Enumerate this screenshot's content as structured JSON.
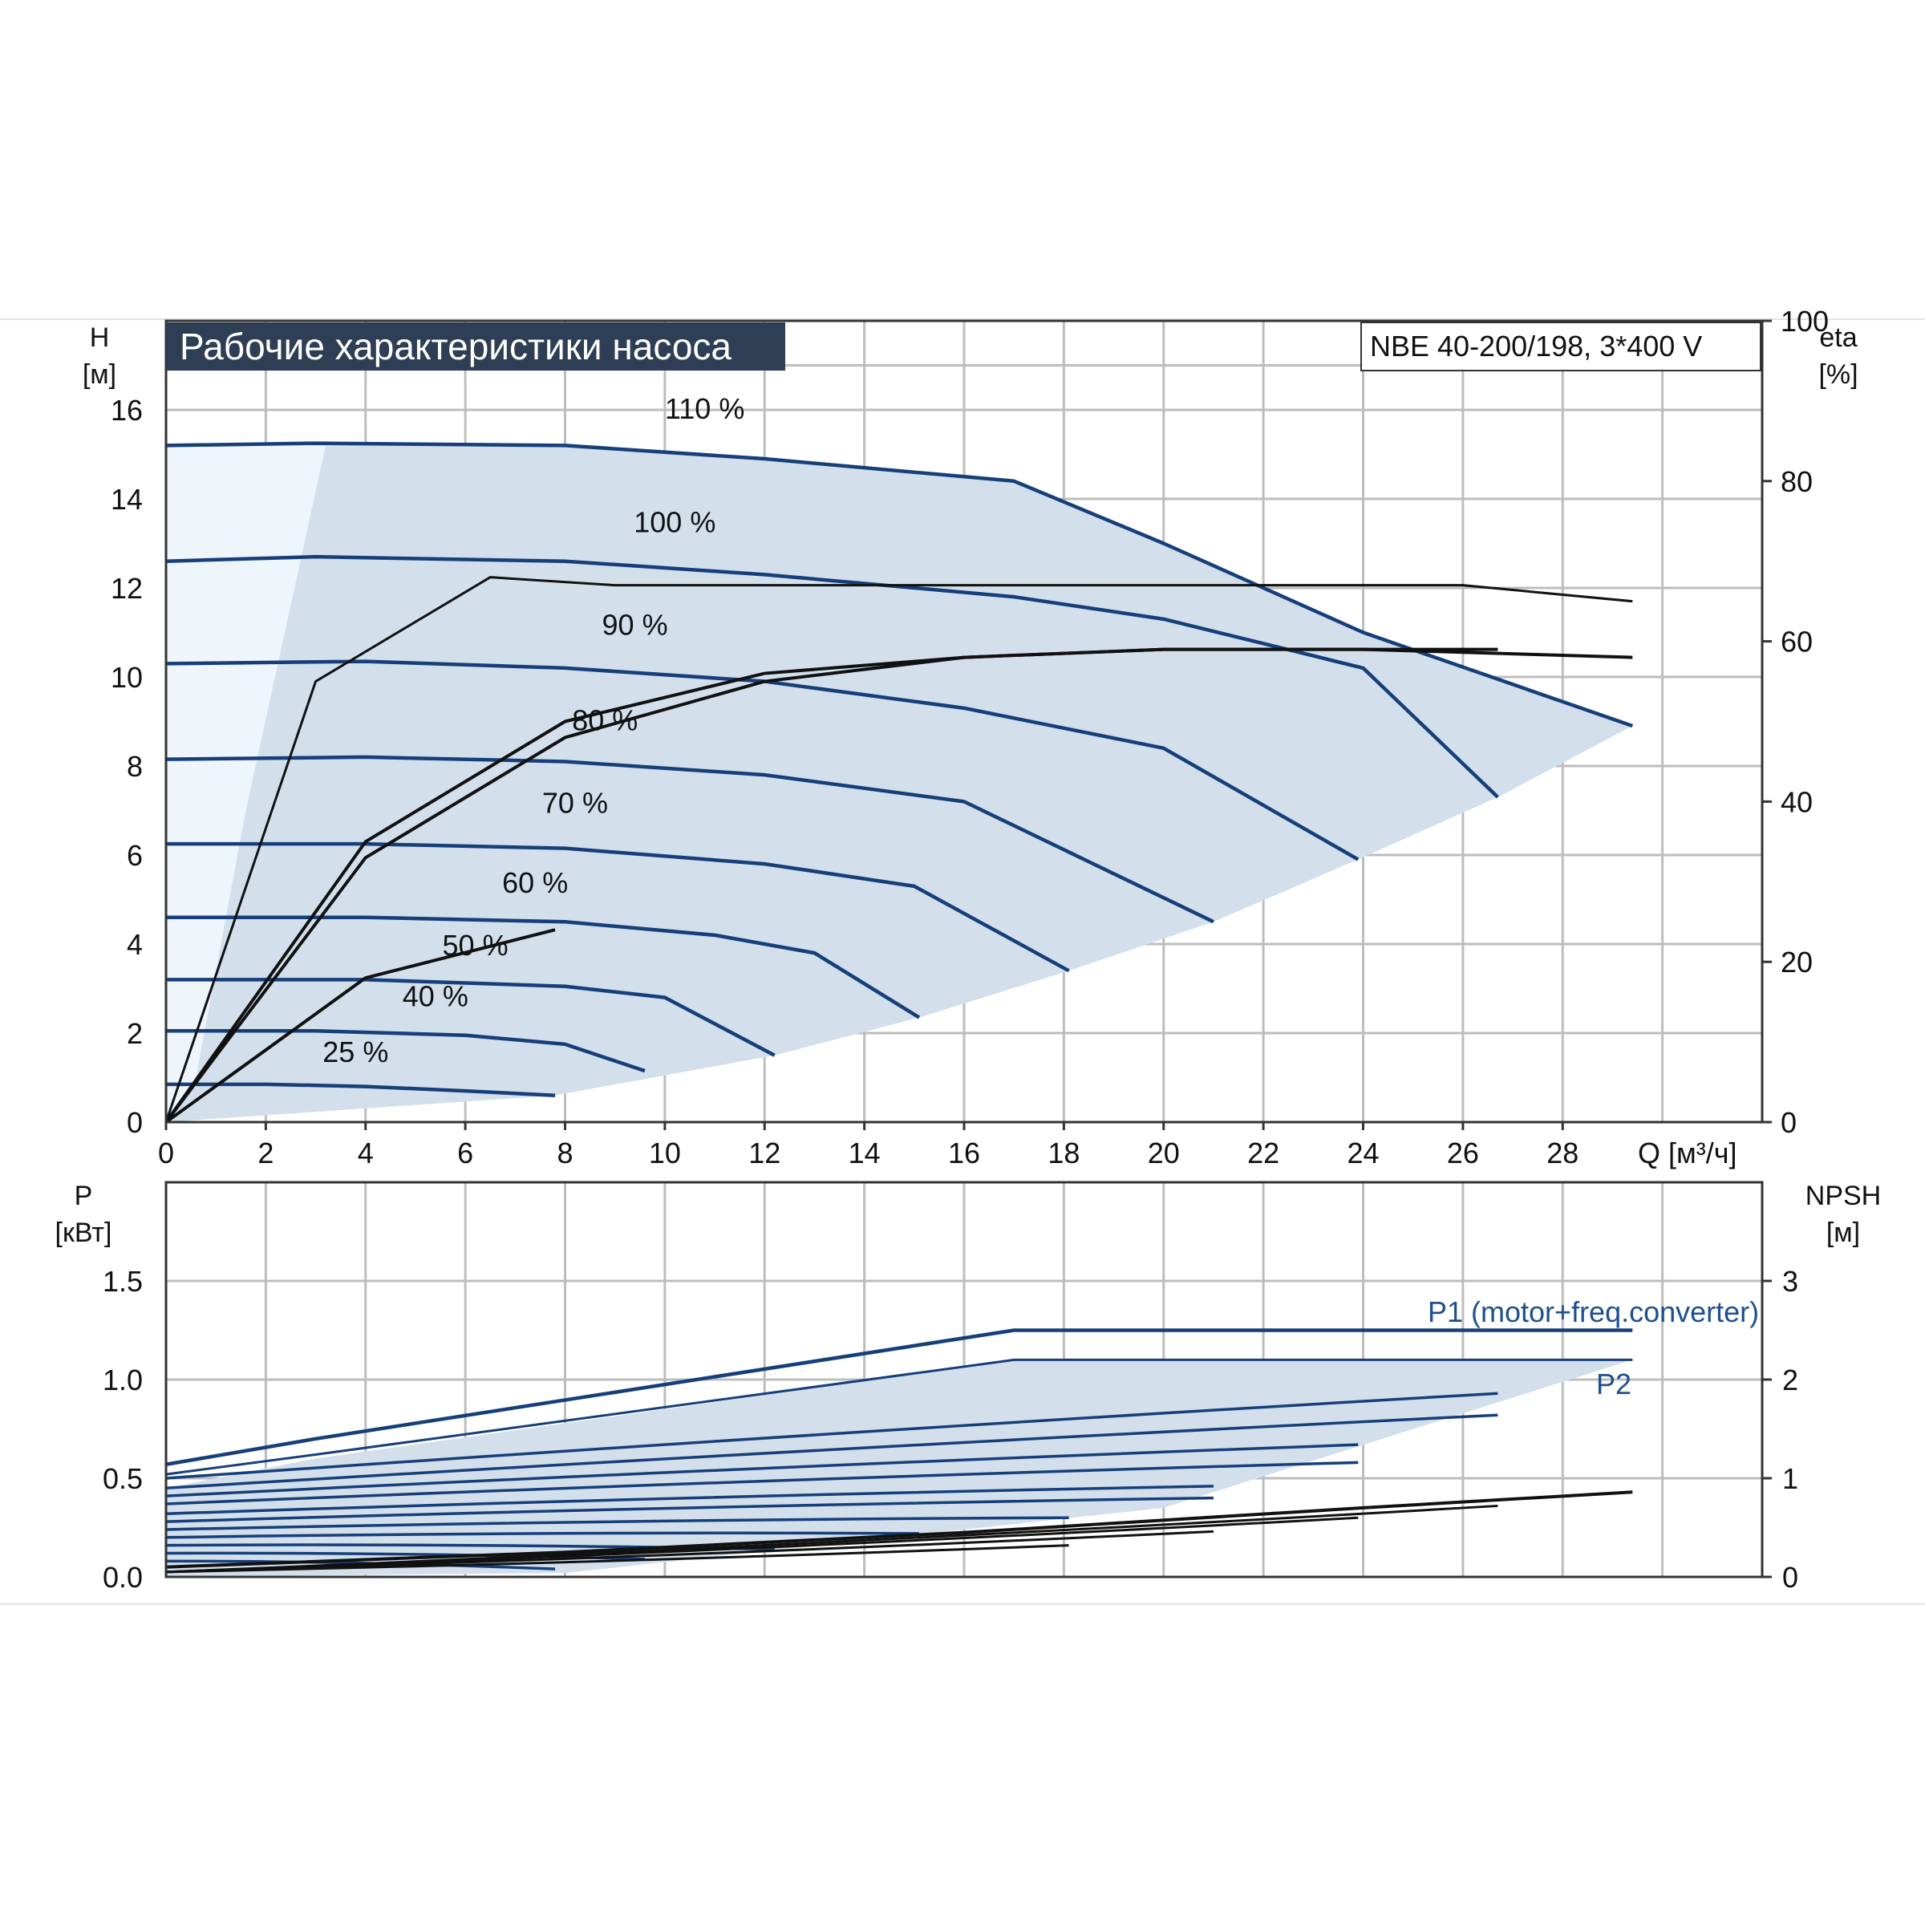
{
  "header": {
    "title": "Рабочие характеристики насоса",
    "model": "NBE 40-200/198, 3*400 V"
  },
  "colors": {
    "curve_blue": "#163f7a",
    "fill_blue": "#d3e0ec",
    "fill_light": "#eef5fb",
    "grid": "#bdbdbd",
    "title_bg": "#2e3e55",
    "eff_black": "#111111"
  },
  "chart_data": [
    {
      "type": "line",
      "title": "Рабочие характеристики насоса",
      "subtitle": "NBE 40-200/198, 3*400 V",
      "xlabel": "Q [м³/ч]",
      "ylabel": "H [м]",
      "y2label": "eta [%]",
      "y_label_main": "H",
      "y_label_unit": "[м]",
      "y2_label_main": "eta",
      "y2_label_unit": "[%]",
      "x_axis_label": "Q [м³/ч]",
      "xlim": [
        0,
        32
      ],
      "ylim": [
        0,
        18
      ],
      "y2lim": [
        0,
        100
      ],
      "x_ticks": [
        "0",
        "2",
        "4",
        "6",
        "8",
        "10",
        "12",
        "14",
        "16",
        "18",
        "20",
        "22",
        "24",
        "26",
        "28"
      ],
      "y_ticks": [
        "0",
        "2",
        "4",
        "6",
        "8",
        "10",
        "12",
        "14",
        "16"
      ],
      "y2_ticks": [
        "0",
        "20",
        "40",
        "60",
        "80",
        "100"
      ],
      "grid": true,
      "series": [
        {
          "name": "110 %",
          "x": [
            0,
            3,
            8,
            12,
            17,
            20,
            24,
            29.4
          ],
          "y": [
            15.2,
            15.25,
            15.2,
            14.9,
            14.4,
            13.0,
            11.0,
            8.9
          ]
        },
        {
          "name": "100 %",
          "x": [
            0,
            3,
            8,
            12,
            17,
            20,
            24,
            26.7
          ],
          "y": [
            12.6,
            12.7,
            12.6,
            12.3,
            11.8,
            11.3,
            10.2,
            7.3
          ]
        },
        {
          "name": "90 %",
          "x": [
            0,
            4,
            8,
            12,
            16,
            20,
            23.9
          ],
          "y": [
            10.3,
            10.35,
            10.2,
            9.9,
            9.3,
            8.4,
            5.9
          ]
        },
        {
          "name": "80 %",
          "x": [
            0,
            4,
            8,
            12,
            16,
            21
          ],
          "y": [
            8.15,
            8.2,
            8.1,
            7.8,
            7.2,
            4.5
          ]
        },
        {
          "name": "70 %",
          "x": [
            0,
            4,
            8,
            12,
            15,
            18.1
          ],
          "y": [
            6.25,
            6.25,
            6.15,
            5.8,
            5.3,
            3.4
          ]
        },
        {
          "name": "60 %",
          "x": [
            0,
            4,
            8,
            11,
            13,
            15.1
          ],
          "y": [
            4.6,
            4.6,
            4.5,
            4.2,
            3.8,
            2.35
          ]
        },
        {
          "name": "50 %",
          "x": [
            0,
            4,
            8,
            10,
            12.2
          ],
          "y": [
            3.2,
            3.2,
            3.05,
            2.8,
            1.5
          ]
        },
        {
          "name": "40 %",
          "x": [
            0,
            3,
            6,
            8,
            9.6
          ],
          "y": [
            2.05,
            2.05,
            1.95,
            1.75,
            1.15
          ]
        },
        {
          "name": "25 %",
          "x": [
            0,
            2,
            4,
            6,
            7.8
          ],
          "y": [
            0.85,
            0.85,
            0.8,
            0.7,
            0.6
          ]
        }
      ],
      "efficiency_curves_eta_percent": [
        {
          "x": [
            0,
            3,
            6.5,
            9,
            14,
            20,
            26,
            29.4
          ],
          "y": [
            0,
            55,
            68,
            67,
            67,
            67,
            67,
            65
          ]
        },
        {
          "x": [
            0,
            4,
            8,
            12,
            16,
            20,
            24,
            29.4
          ],
          "y": [
            0,
            35,
            50,
            56,
            58,
            59,
            59,
            58
          ]
        },
        {
          "x": [
            0,
            4,
            8,
            12,
            16,
            20,
            24,
            26.7
          ],
          "y": [
            0,
            33,
            48,
            55,
            58,
            59,
            59,
            59
          ]
        },
        {
          "x": [
            0,
            4,
            7.8
          ],
          "y": [
            0,
            18,
            24
          ]
        }
      ]
    },
    {
      "type": "line",
      "xlabel": "",
      "ylabel": "P [кВт]",
      "y2label": "NPSH [м]",
      "y_label_main": "P",
      "y_label_unit": "[кВт]",
      "y2_label_main": "NPSH",
      "y2_label_unit": "[м]",
      "xlim": [
        0,
        32
      ],
      "ylim": [
        0,
        2.0
      ],
      "y2lim": [
        0,
        4
      ],
      "y_ticks": [
        "0.0",
        "0.5",
        "1.0",
        "1.5"
      ],
      "y2_ticks": [
        "0",
        "1",
        "2",
        "3"
      ],
      "grid": true,
      "annotations": [
        "P1 (motor+freq.converter)",
        "P2"
      ],
      "series": [
        {
          "name": "P1 (motor+freq.converter)",
          "x": [
            0,
            3,
            17,
            29.4
          ],
          "y": [
            0.57,
            0.7,
            1.25,
            1.25
          ]
        },
        {
          "name": "P2",
          "x": [
            0,
            3,
            17,
            29.4
          ],
          "y": [
            0.52,
            0.62,
            1.1,
            1.1
          ]
        }
      ],
      "npsh": {
        "x": [
          0,
          8,
          16,
          24,
          29.4
        ],
        "y": [
          0.1,
          0.25,
          0.45,
          0.7,
          0.86
        ]
      }
    }
  ]
}
